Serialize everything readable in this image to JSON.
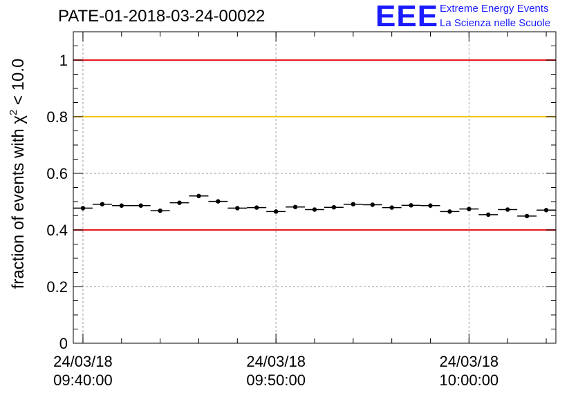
{
  "header": {
    "title": "PATE-01-2018-03-24-00022",
    "logo_text": "EEE",
    "logo_line1": "Extreme Energy Events",
    "logo_line2": "La Scienza nelle Scuole"
  },
  "colors": {
    "threshold_red": "#e8141a",
    "threshold_yellow": "#f5c400",
    "logo_blue": "#1a1aff",
    "grid": "#9a9a9a",
    "marker": "#000000"
  },
  "chart_data": {
    "type": "scatter",
    "title": "PATE-01-2018-03-24-00022",
    "ylabel": "fraction of events with χ² < 10.0",
    "ylabel_base": "fraction of events with ",
    "ylabel_chi": "χ",
    "ylabel_exp": "2",
    "ylabel_tail": " < 10.0",
    "xlabel": "",
    "x_start": "2018-03-24 09:39:30",
    "ylim": [
      0,
      1.1
    ],
    "y_ticks": [
      0,
      0.2,
      0.4,
      0.6,
      0.8,
      1
    ],
    "y_tick_labels": [
      "0",
      "0.2",
      "0.4",
      "0.6",
      "0.8",
      "1"
    ],
    "x_major_ticks": [
      {
        "time": "09:40:00",
        "date": "24/03/18",
        "label_line1": "24/03/18",
        "label_line2": "09:40:00"
      },
      {
        "time": "09:50:00",
        "date": "24/03/18",
        "label_line1": "24/03/18",
        "label_line2": "09:50:00"
      },
      {
        "time": "10:00:00",
        "date": "24/03/18",
        "label_line1": "24/03/18",
        "label_line2": "10:00:00"
      }
    ],
    "grid": true,
    "threshold_lines": [
      {
        "y": 1.0,
        "color": "#e8141a"
      },
      {
        "y": 0.8,
        "color": "#f5c400"
      },
      {
        "y": 0.4,
        "color": "#e8141a"
      }
    ],
    "series": [
      {
        "x": [
          "09:40:00",
          "09:41:00",
          "09:42:00",
          "09:43:00",
          "09:44:00",
          "09:45:00",
          "09:46:00",
          "09:47:00",
          "09:48:00",
          "09:49:00",
          "09:50:00",
          "09:51:00",
          "09:52:00",
          "09:53:00",
          "09:54:00",
          "09:55:00",
          "09:56:00",
          "09:57:00",
          "09:58:00",
          "09:59:00",
          "10:00:00",
          "10:01:00",
          "10:02:00",
          "10:03:00",
          "10:04:00"
        ],
        "y": [
          0.477,
          0.491,
          0.486,
          0.486,
          0.468,
          0.496,
          0.52,
          0.501,
          0.477,
          0.479,
          0.465,
          0.481,
          0.472,
          0.48,
          0.491,
          0.489,
          0.479,
          0.487,
          0.486,
          0.465,
          0.474,
          0.454,
          0.472,
          0.449,
          0.47
        ],
        "x_err_minutes": 0.5,
        "y_err": 0.007
      }
    ]
  }
}
